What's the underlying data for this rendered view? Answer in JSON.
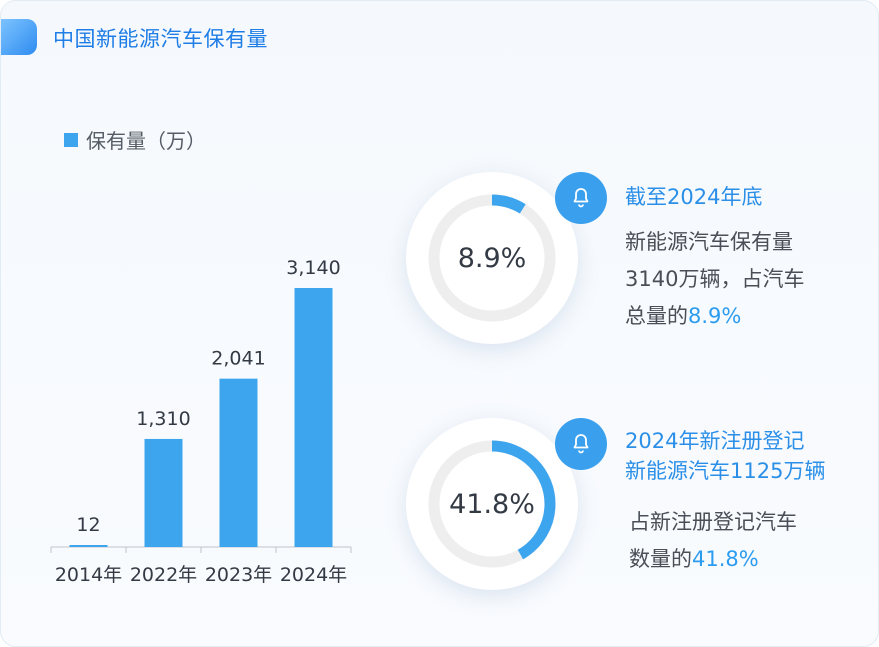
{
  "title": "中国新能源汽车保有量",
  "legend": {
    "label": "保有量（万）",
    "color": "#3da5ee"
  },
  "chart_data": {
    "type": "bar",
    "categories": [
      "2014年",
      "2022年",
      "2023年",
      "2024年"
    ],
    "series": [
      {
        "name": "保有量（万）",
        "values": [
          12,
          1310,
          2041,
          3140
        ]
      }
    ],
    "value_labels": [
      "12",
      "1,310",
      "2,041",
      "3,140"
    ],
    "ylim": [
      0,
      3140
    ],
    "grid": false,
    "legend_position": "top-left"
  },
  "stats": [
    {
      "percent": 8.9,
      "percent_label": "8.9%",
      "icon": "bell-icon",
      "heading": [
        "截至2024年底"
      ],
      "body_prefix": "新能源汽车保有量",
      "body_line2": "3140万辆，占汽车",
      "body_line3_prefix": "总量的",
      "body_highlight": "8.9%"
    },
    {
      "percent": 41.8,
      "percent_label": "41.8%",
      "icon": "bell-icon",
      "heading": [
        "2024年新注册登记",
        "新能源汽车1125万辆"
      ],
      "body_prefix": "占新注册登记汽车",
      "body_line2_prefix": "数量的",
      "body_highlight": "41.8%"
    }
  ],
  "colors": {
    "accent": "#3da5ee",
    "ring_track": "#eeeeee",
    "title": "#1f7de6"
  }
}
